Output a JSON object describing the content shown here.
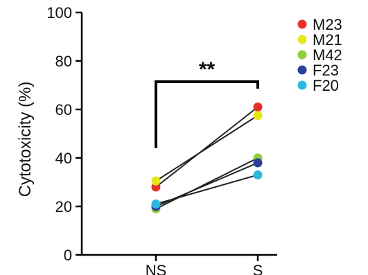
{
  "chart_data": {
    "type": "line",
    "title": "",
    "xlabel": "",
    "ylabel": "Cytotoxicity (%)",
    "categories": [
      "NS",
      "S"
    ],
    "ylim": [
      0,
      100
    ],
    "yticks": [
      "0",
      "20",
      "40",
      "60",
      "80",
      "100"
    ],
    "legend_position": "top-right",
    "grid": false,
    "series": [
      {
        "name": "M23",
        "color": "#e8302a",
        "values": [
          28,
          61
        ]
      },
      {
        "name": "M21",
        "color": "#e6e61a",
        "values": [
          30.5,
          57.5
        ]
      },
      {
        "name": "M42",
        "color": "#8fcf3c",
        "values": [
          19,
          40
        ]
      },
      {
        "name": "F23",
        "color": "#2b3f9c",
        "values": [
          20,
          38
        ]
      },
      {
        "name": "F20",
        "color": "#2ab8e0",
        "values": [
          21,
          33
        ]
      }
    ],
    "annotation": {
      "label": "**",
      "from_category": "NS",
      "to_category": "S"
    }
  }
}
